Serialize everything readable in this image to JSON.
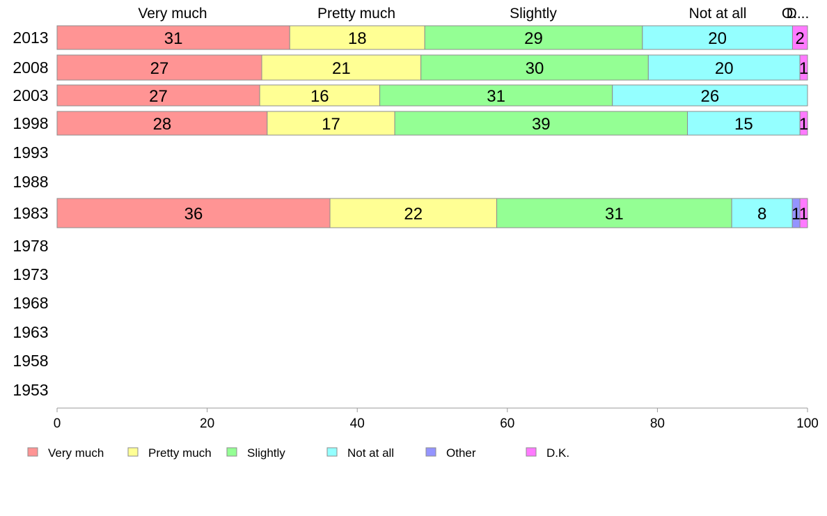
{
  "chart_data": {
    "type": "bar",
    "orientation": "horizontal",
    "stacked": true,
    "categories": [
      "2013",
      "2008",
      "2003",
      "1998",
      "1993",
      "1988",
      "1983",
      "1978",
      "1973",
      "1968",
      "1963",
      "1958",
      "1953"
    ],
    "series": [
      {
        "name": "Very much",
        "color": "#ff9494",
        "values": [
          31,
          27,
          27,
          28,
          null,
          null,
          36,
          null,
          null,
          null,
          null,
          null,
          null
        ]
      },
      {
        "name": "Pretty much",
        "color": "#ffff94",
        "values": [
          18,
          21,
          16,
          17,
          null,
          null,
          22,
          null,
          null,
          null,
          null,
          null,
          null
        ]
      },
      {
        "name": "Slightly",
        "color": "#94ff94",
        "values": [
          29,
          30,
          31,
          39,
          null,
          null,
          31,
          null,
          null,
          null,
          null,
          null,
          null
        ]
      },
      {
        "name": "Not at all",
        "color": "#94ffff",
        "values": [
          20,
          20,
          26,
          15,
          null,
          null,
          8,
          null,
          null,
          null,
          null,
          null,
          null
        ]
      },
      {
        "name": "Other",
        "color": "#9494ff",
        "values": [
          0,
          0,
          0,
          0,
          null,
          null,
          1,
          null,
          null,
          null,
          null,
          null,
          null
        ]
      },
      {
        "name": "D.K.",
        "color": "#ff7aff",
        "values": [
          2,
          1,
          0,
          1,
          null,
          null,
          1,
          null,
          null,
          null,
          null,
          null,
          null
        ]
      }
    ],
    "top_labels": [
      "Very much",
      "Pretty much",
      "Slightly",
      "Not at all",
      "O.",
      "D..."
    ],
    "xlim": [
      0,
      100
    ],
    "xticks": [
      "0",
      "20",
      "40",
      "60",
      "80",
      "100"
    ],
    "title": "",
    "xlabel": "",
    "ylabel": "",
    "grid": false,
    "legend": {
      "position": "bottom",
      "items": [
        "Very much",
        "Pretty much",
        "Slightly",
        "Not at all",
        "Other",
        "D.K."
      ]
    }
  }
}
